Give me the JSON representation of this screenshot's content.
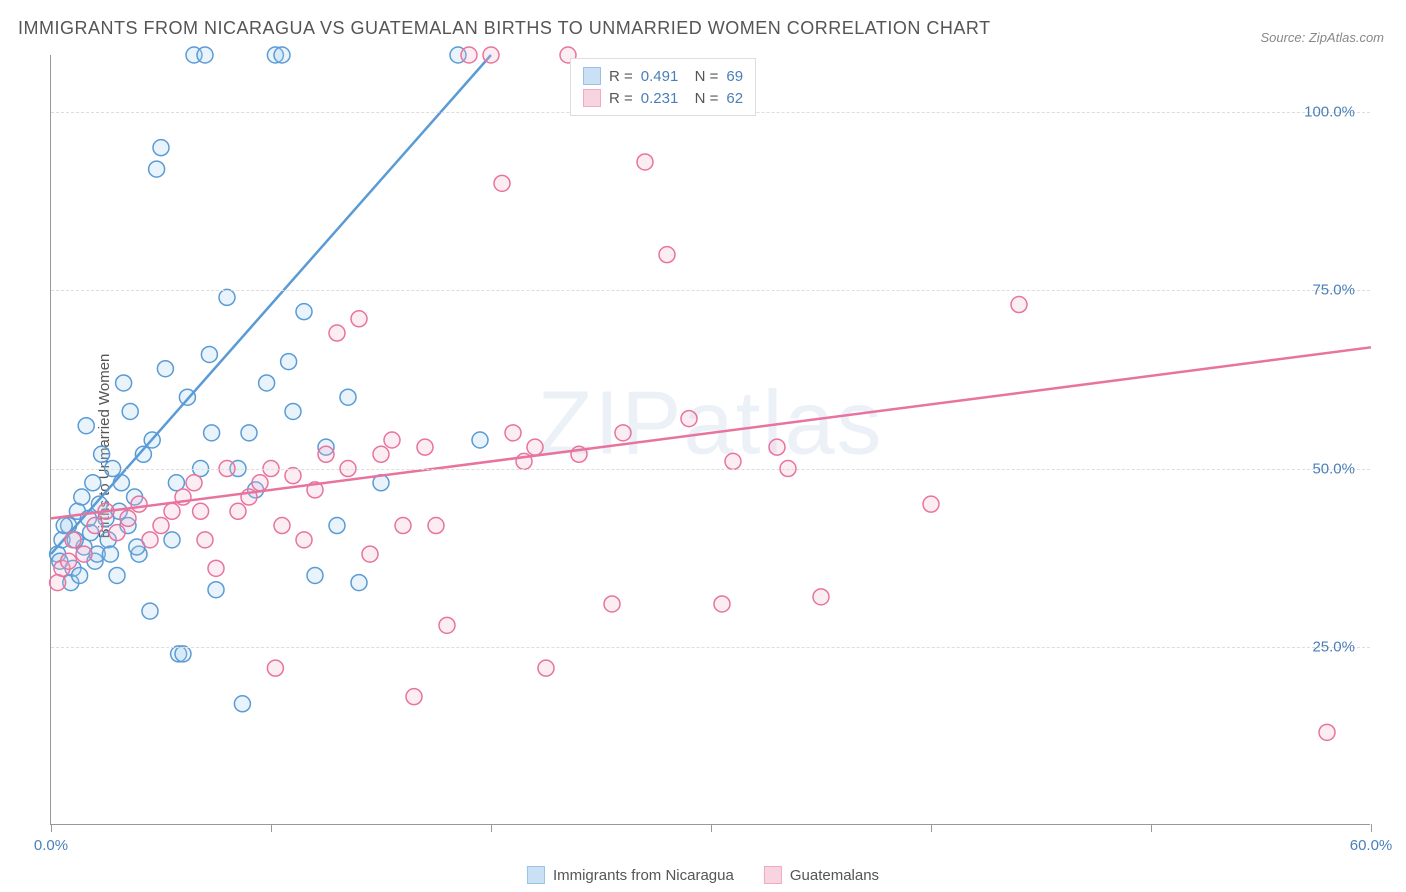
{
  "chart": {
    "type": "scatter",
    "title": "IMMIGRANTS FROM NICARAGUA VS GUATEMALAN BIRTHS TO UNMARRIED WOMEN CORRELATION CHART",
    "source_label": "Source: ZipAtlas.com",
    "watermark": "ZIPatlas",
    "y_axis_label": "Births to Unmarried Women",
    "background_color": "#ffffff",
    "grid_color": "#dddddd",
    "axis_line_color": "#999999",
    "title_color": "#555555",
    "title_fontsize": 18,
    "tick_label_color": "#4a7fb8",
    "tick_label_fontsize": 15,
    "xlim": [
      0,
      60
    ],
    "ylim": [
      0,
      108
    ],
    "x_ticks": [
      0,
      10,
      20,
      30,
      40,
      50,
      60
    ],
    "x_tick_labels": {
      "0": "0.0%",
      "60": "60.0%"
    },
    "y_gridlines": [
      25,
      50,
      75,
      100
    ],
    "y_tick_labels": {
      "25": "25.0%",
      "50": "50.0%",
      "75": "75.0%",
      "100": "100.0%"
    },
    "marker_radius": 8,
    "marker_stroke_width": 1.5,
    "marker_fill_opacity": 0.25,
    "trendline_width": 2.5,
    "series": [
      {
        "name": "Immigrants from Nicaragua",
        "color_stroke": "#5a9bd5",
        "color_fill": "#a8cef0",
        "R": "0.491",
        "N": "69",
        "trendline": {
          "x1": 0,
          "y1": 38,
          "x2": 20,
          "y2": 108
        },
        "points": [
          [
            0.3,
            38
          ],
          [
            0.5,
            40
          ],
          [
            0.8,
            42
          ],
          [
            1.0,
            36
          ],
          [
            1.2,
            44
          ],
          [
            1.5,
            39
          ],
          [
            1.8,
            41
          ],
          [
            2.0,
            37
          ],
          [
            2.2,
            45
          ],
          [
            2.5,
            43
          ],
          [
            3.0,
            35
          ],
          [
            3.2,
            48
          ],
          [
            3.5,
            42
          ],
          [
            3.8,
            46
          ],
          [
            4.0,
            38
          ],
          [
            4.2,
            52
          ],
          [
            4.5,
            30
          ],
          [
            5.0,
            95
          ],
          [
            5.2,
            64
          ],
          [
            5.5,
            40
          ],
          [
            5.8,
            24
          ],
          [
            6.0,
            24
          ],
          [
            6.2,
            60
          ],
          [
            6.5,
            108
          ],
          [
            7.0,
            108
          ],
          [
            7.2,
            66
          ],
          [
            7.5,
            33
          ],
          [
            8.0,
            74
          ],
          [
            8.5,
            50
          ],
          [
            9.0,
            55
          ],
          [
            9.3,
            47
          ],
          [
            9.8,
            62
          ],
          [
            10.2,
            108
          ],
          [
            10.5,
            108
          ],
          [
            11.0,
            58
          ],
          [
            11.5,
            72
          ],
          [
            12.0,
            35
          ],
          [
            12.5,
            53
          ],
          [
            13.0,
            42
          ],
          [
            13.5,
            60
          ],
          [
            14.0,
            34
          ],
          [
            4.8,
            92
          ],
          [
            3.6,
            58
          ],
          [
            7.3,
            55
          ],
          [
            8.7,
            17
          ],
          [
            5.7,
            48
          ],
          [
            2.8,
            50
          ],
          [
            1.6,
            56
          ],
          [
            0.9,
            34
          ],
          [
            1.4,
            46
          ],
          [
            0.6,
            42
          ],
          [
            2.1,
            38
          ],
          [
            2.6,
            40
          ],
          [
            3.1,
            44
          ],
          [
            3.9,
            39
          ],
          [
            1.9,
            48
          ],
          [
            2.3,
            52
          ],
          [
            0.4,
            37
          ],
          [
            1.1,
            40
          ],
          [
            1.7,
            43
          ],
          [
            18.5,
            108
          ],
          [
            15.0,
            48
          ],
          [
            10.8,
            65
          ],
          [
            6.8,
            50
          ],
          [
            4.6,
            54
          ],
          [
            3.3,
            62
          ],
          [
            2.7,
            38
          ],
          [
            1.3,
            35
          ],
          [
            19.5,
            54
          ]
        ]
      },
      {
        "name": "Guatemalans",
        "color_stroke": "#e8739e",
        "color_fill": "#f5b8ce",
        "R": "0.231",
        "N": "62",
        "trendline": {
          "x1": 0,
          "y1": 43,
          "x2": 60,
          "y2": 67
        },
        "points": [
          [
            0.5,
            36
          ],
          [
            1.0,
            40
          ],
          [
            1.5,
            38
          ],
          [
            2.0,
            42
          ],
          [
            2.5,
            44
          ],
          [
            3.0,
            41
          ],
          [
            3.5,
            43
          ],
          [
            4.0,
            45
          ],
          [
            4.5,
            40
          ],
          [
            5.0,
            42
          ],
          [
            5.5,
            44
          ],
          [
            6.0,
            46
          ],
          [
            6.5,
            48
          ],
          [
            7.0,
            40
          ],
          [
            8.0,
            50
          ],
          [
            8.5,
            44
          ],
          [
            9.0,
            46
          ],
          [
            9.5,
            48
          ],
          [
            10.0,
            50
          ],
          [
            10.5,
            42
          ],
          [
            11.0,
            49
          ],
          [
            12.0,
            47
          ],
          [
            13.0,
            69
          ],
          [
            13.5,
            50
          ],
          [
            14.0,
            71
          ],
          [
            14.5,
            38
          ],
          [
            15.0,
            52
          ],
          [
            16.0,
            42
          ],
          [
            17.0,
            53
          ],
          [
            18.0,
            28
          ],
          [
            19.0,
            108
          ],
          [
            20.0,
            108
          ],
          [
            20.5,
            90
          ],
          [
            21.0,
            55
          ],
          [
            21.5,
            51
          ],
          [
            22.0,
            53
          ],
          [
            22.5,
            22
          ],
          [
            23.5,
            108
          ],
          [
            24.0,
            52
          ],
          [
            25.5,
            31
          ],
          [
            26.0,
            55
          ],
          [
            27.0,
            93
          ],
          [
            28.0,
            80
          ],
          [
            29.0,
            57
          ],
          [
            30.5,
            31
          ],
          [
            31.0,
            51
          ],
          [
            33.0,
            53
          ],
          [
            33.5,
            50
          ],
          [
            35.0,
            32
          ],
          [
            40.0,
            45
          ],
          [
            44.0,
            73
          ],
          [
            58.0,
            13
          ],
          [
            10.2,
            22
          ],
          [
            12.5,
            52
          ],
          [
            11.5,
            40
          ],
          [
            16.5,
            18
          ],
          [
            17.5,
            42
          ],
          [
            15.5,
            54
          ],
          [
            7.5,
            36
          ],
          [
            6.8,
            44
          ],
          [
            0.3,
            34
          ],
          [
            0.8,
            37
          ]
        ]
      }
    ],
    "legend_bottom": [
      {
        "swatch_fill": "#a8cef0",
        "swatch_stroke": "#5a9bd5",
        "label": "Immigrants from Nicaragua"
      },
      {
        "swatch_fill": "#f5b8ce",
        "swatch_stroke": "#e8739e",
        "label": "Guatemalans"
      }
    ]
  }
}
